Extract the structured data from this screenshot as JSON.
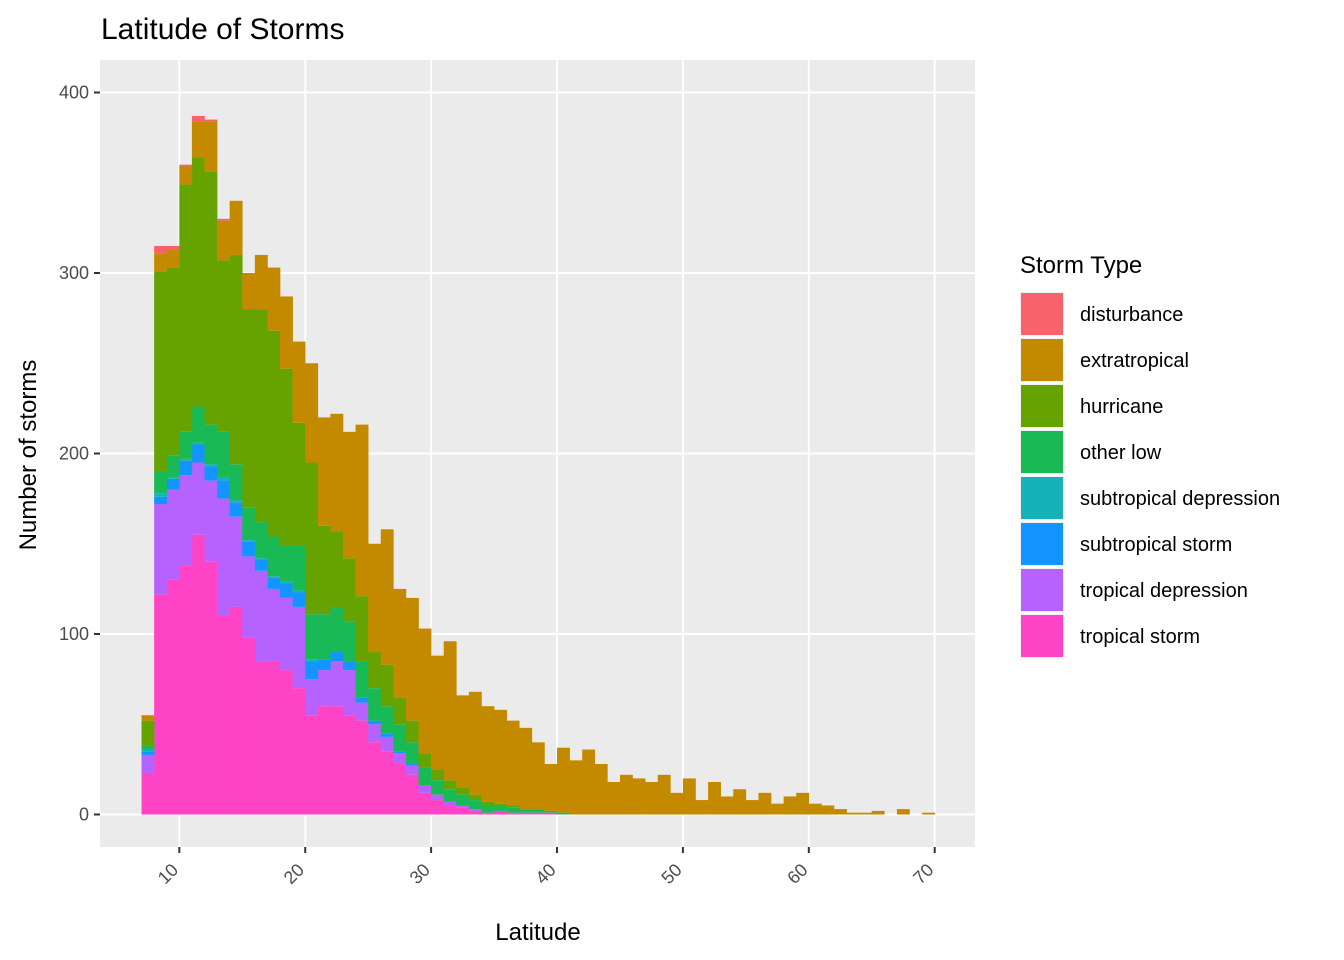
{
  "chart_data": {
    "type": "histogram",
    "title": "Latitude of Storms",
    "x_label": "Latitude",
    "y_label": "Number of storms",
    "legend_title": "Storm Type",
    "legend_position": "right",
    "grid": true,
    "bins": [
      7,
      8,
      9,
      10,
      11,
      12,
      13,
      14,
      15,
      16,
      17,
      18,
      19,
      20,
      21,
      22,
      23,
      24,
      25,
      26,
      27,
      28,
      29,
      30,
      31,
      32,
      33,
      34,
      35,
      36,
      37,
      38,
      39,
      40,
      41,
      42,
      43,
      44,
      45,
      46,
      47,
      48,
      49,
      50,
      51,
      52,
      53,
      54,
      55,
      56,
      57,
      58,
      59,
      60,
      61,
      62,
      63,
      64,
      65,
      66,
      67,
      68,
      69,
      70
    ],
    "xlim": [
      3.7,
      73.2
    ],
    "xticks": [
      10,
      20,
      30,
      40,
      50,
      60,
      70
    ],
    "ylim": [
      -18,
      418
    ],
    "yticks": [
      0,
      100,
      200,
      300,
      400
    ],
    "series": [
      {
        "name": "disturbance",
        "color": "#F8636B",
        "values": [
          0,
          4,
          2,
          1,
          3,
          1,
          1,
          0,
          0,
          0,
          0,
          0,
          0,
          0,
          0,
          0,
          0,
          0,
          0,
          0,
          0,
          0,
          0,
          0,
          0,
          0,
          0,
          0,
          0,
          0,
          0,
          0,
          0,
          0,
          0,
          0,
          0,
          0,
          0,
          0,
          0,
          0,
          0,
          0,
          0,
          0,
          0,
          0,
          0,
          0,
          0,
          0,
          0,
          0,
          0,
          0,
          0,
          0,
          0,
          0,
          0,
          0,
          0
        ]
      },
      {
        "name": "extratropical",
        "color": "#C38A00",
        "values": [
          3,
          10,
          10,
          10,
          20,
          28,
          22,
          30,
          20,
          30,
          35,
          40,
          45,
          55,
          60,
          65,
          70,
          95,
          60,
          75,
          60,
          68,
          69,
          63,
          77,
          51,
          57,
          53,
          52,
          47,
          45,
          37,
          26,
          36,
          30,
          36,
          28,
          18,
          22,
          20,
          18,
          22,
          12,
          20,
          8,
          18,
          10,
          14,
          8,
          12,
          6,
          10,
          12,
          6,
          5,
          3,
          1,
          1,
          2,
          0,
          3,
          0,
          1
        ]
      },
      {
        "name": "hurricane",
        "color": "#66A300",
        "values": [
          14,
          111,
          104,
          137,
          138,
          140,
          95,
          116,
          110,
          118,
          114,
          98,
          68,
          84,
          49,
          42,
          35,
          36,
          20,
          23,
          15,
          12,
          8,
          6,
          5,
          4,
          3,
          2,
          1,
          1,
          0,
          0,
          0,
          0,
          0,
          0,
          0,
          0,
          0,
          0,
          0,
          0,
          0,
          0,
          0,
          0,
          0,
          0,
          0,
          0,
          0,
          0,
          0,
          0,
          0,
          0,
          0,
          0,
          0,
          0,
          0,
          0,
          0
        ]
      },
      {
        "name": "other low",
        "color": "#19B956",
        "values": [
          2,
          12,
          12,
          15,
          20,
          22,
          25,
          20,
          18,
          20,
          22,
          20,
          25,
          25,
          25,
          25,
          22,
          20,
          18,
          15,
          15,
          12,
          10,
          8,
          7,
          6,
          5,
          4,
          3,
          3,
          2,
          2,
          1,
          1,
          0,
          0,
          0,
          0,
          0,
          0,
          0,
          0,
          0,
          0,
          0,
          0,
          0,
          0,
          0,
          0,
          0,
          0,
          0,
          0,
          0,
          0,
          0,
          0,
          0,
          0,
          0,
          0,
          0
        ]
      },
      {
        "name": "subtropical depression",
        "color": "#17B2B8",
        "values": [
          1,
          2,
          1,
          1,
          1,
          1,
          2,
          1,
          1,
          1,
          1,
          1,
          1,
          1,
          0,
          0,
          0,
          0,
          0,
          0,
          0,
          0,
          0,
          0,
          0,
          0,
          0,
          0,
          0,
          0,
          0,
          0,
          0,
          0,
          0,
          0,
          0,
          0,
          0,
          0,
          0,
          0,
          0,
          0,
          0,
          0,
          0,
          0,
          0,
          0,
          0,
          0,
          0,
          0,
          0,
          0,
          0,
          0,
          0,
          0,
          0,
          0,
          0
        ]
      },
      {
        "name": "subtropical storm",
        "color": "#1494FF",
        "values": [
          2,
          4,
          6,
          8,
          10,
          8,
          10,
          8,
          8,
          6,
          6,
          8,
          8,
          10,
          6,
          5,
          5,
          3,
          2,
          2,
          1,
          1,
          0,
          0,
          0,
          0,
          0,
          0,
          0,
          0,
          0,
          0,
          0,
          0,
          0,
          0,
          0,
          0,
          0,
          0,
          0,
          0,
          0,
          0,
          0,
          0,
          0,
          0,
          0,
          0,
          0,
          0,
          0,
          0,
          0,
          0,
          0,
          0,
          0,
          0,
          0,
          0,
          0
        ]
      },
      {
        "name": "tropical depression",
        "color": "#B562FF",
        "values": [
          10,
          50,
          50,
          50,
          40,
          45,
          65,
          50,
          45,
          50,
          40,
          40,
          45,
          20,
          20,
          25,
          25,
          10,
          10,
          8,
          6,
          5,
          4,
          3,
          2,
          1,
          1,
          0,
          0,
          0,
          0,
          0,
          0,
          0,
          0,
          0,
          0,
          0,
          0,
          0,
          0,
          0,
          0,
          0,
          0,
          0,
          0,
          0,
          0,
          0,
          0,
          0,
          0,
          0,
          0,
          0,
          0,
          0,
          0,
          0,
          0,
          0,
          0
        ]
      },
      {
        "name": "tropical storm",
        "color": "#FF43C6",
        "values": [
          23,
          122,
          130,
          138,
          155,
          140,
          110,
          115,
          98,
          85,
          85,
          80,
          70,
          55,
          60,
          60,
          55,
          52,
          40,
          35,
          28,
          22,
          12,
          8,
          5,
          4,
          2,
          1,
          2,
          1,
          1,
          1,
          1,
          0,
          0,
          0,
          0,
          0,
          0,
          0,
          0,
          0,
          0,
          0,
          0,
          0,
          0,
          0,
          0,
          0,
          0,
          0,
          0,
          0,
          0,
          0,
          0,
          0,
          0,
          0,
          0,
          0,
          0
        ]
      }
    ]
  }
}
